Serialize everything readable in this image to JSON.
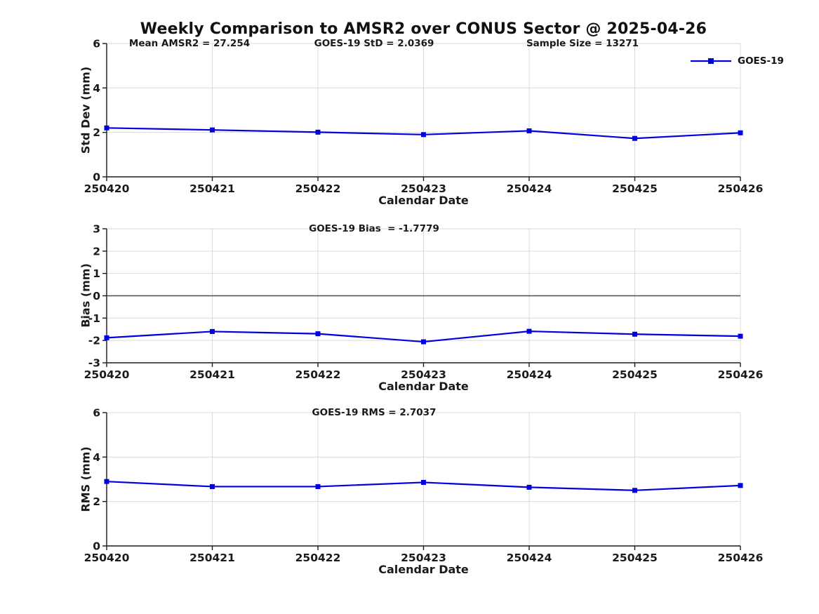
{
  "figure": {
    "title": "Weekly Comparison to AMSR2 over CONUS Sector @ 2025-04-26",
    "legend": {
      "label": "GOES-19"
    }
  },
  "colors": {
    "series": "#0000e0",
    "grid": "#d9d9d9",
    "axis": "#1a1a1a",
    "zero_line": "#4d4d4d",
    "text": "#1a1a1a"
  },
  "chart_data": [
    {
      "type": "line",
      "panel": "std-dev",
      "title": "",
      "categories": [
        "250420",
        "250421",
        "250422",
        "250423",
        "250424",
        "250425",
        "250426"
      ],
      "series": [
        {
          "name": "GOES-19",
          "values": [
            2.2,
            2.11,
            2.01,
            1.9,
            2.07,
            1.73,
            1.98
          ]
        }
      ],
      "xlabel": "Calendar Date",
      "ylabel": "Std Dev (mm)",
      "ylim": [
        0,
        6
      ],
      "yticks": [
        0,
        2,
        4,
        6
      ],
      "grid": true,
      "zero_line": false,
      "annotations": [
        "Mean AMSR2 = 27.254",
        "GOES-19 StD = 2.0369",
        "Sample Size = 13271"
      ],
      "legend_position": "top-right"
    },
    {
      "type": "line",
      "panel": "bias",
      "title": "",
      "categories": [
        "250420",
        "250421",
        "250422",
        "250423",
        "250424",
        "250425",
        "250426"
      ],
      "series": [
        {
          "name": "GOES-19",
          "values": [
            -1.88,
            -1.6,
            -1.7,
            -2.06,
            -1.59,
            -1.72,
            -1.81
          ]
        }
      ],
      "xlabel": "Calendar Date",
      "ylabel": "Bias (mm)",
      "ylim": [
        -3,
        3
      ],
      "yticks": [
        -3,
        -2,
        -1,
        0,
        1,
        2,
        3
      ],
      "grid": true,
      "zero_line": true,
      "annotations": [
        "GOES-19 Bias  = -1.7779"
      ]
    },
    {
      "type": "line",
      "panel": "rms",
      "title": "",
      "categories": [
        "250420",
        "250421",
        "250422",
        "250423",
        "250424",
        "250425",
        "250426"
      ],
      "series": [
        {
          "name": "GOES-19",
          "values": [
            2.9,
            2.67,
            2.67,
            2.86,
            2.64,
            2.5,
            2.72
          ]
        }
      ],
      "xlabel": "Calendar Date",
      "ylabel": "RMS (mm)",
      "ylim": [
        0,
        6
      ],
      "yticks": [
        0,
        2,
        4,
        6
      ],
      "grid": true,
      "zero_line": false,
      "annotations": [
        "GOES-19 RMS = 2.7037"
      ]
    }
  ]
}
